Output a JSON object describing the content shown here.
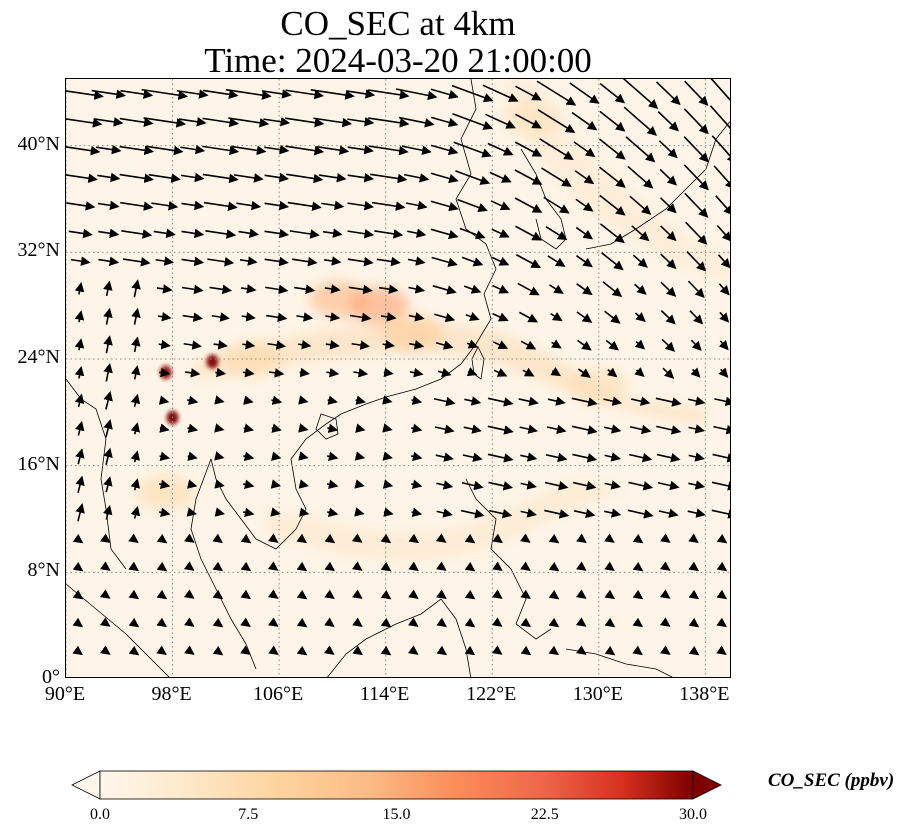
{
  "title": {
    "line1": "CO_SEC at 4km",
    "line2": "Time: 2024-03-20 21:00:00"
  },
  "map": {
    "lon_range": [
      90,
      140
    ],
    "lat_range": [
      0,
      45
    ],
    "lat_ticks": [
      "0°",
      "8°N",
      "16°N",
      "24°N",
      "32°N",
      "40°N"
    ],
    "lon_ticks": [
      "90°E",
      "98°E",
      "106°E",
      "114°E",
      "122°E",
      "130°E",
      "138°E"
    ],
    "gridlines": "dotted grey",
    "field": "CO_SEC",
    "vectors": "wind arrows (black)",
    "hotspots": [
      {
        "lon": 110.5,
        "lat": 28.5,
        "level": 12
      },
      {
        "lon": 113.5,
        "lat": 28.0,
        "level": 14
      },
      {
        "lon": 116.0,
        "lat": 26.0,
        "level": 10
      },
      {
        "lon": 101.0,
        "lat": 23.8,
        "level": 30
      },
      {
        "lon": 97.5,
        "lat": 23.0,
        "level": 28
      },
      {
        "lon": 98.0,
        "lat": 19.6,
        "level": 30
      },
      {
        "lon": 97.5,
        "lat": 14.0,
        "level": 8
      },
      {
        "lon": 104.0,
        "lat": 24.0,
        "level": 8
      },
      {
        "lon": 130.0,
        "lat": 22.0,
        "level": 7
      },
      {
        "lon": 125.0,
        "lat": 42.0,
        "level": 6
      }
    ]
  },
  "colorbar": {
    "label": "CO_SEC (ppbv)",
    "ticks": [
      "0.0",
      "7.5",
      "15.0",
      "22.5",
      "30.0"
    ],
    "min": 0,
    "max": 30,
    "extend": "both",
    "colormap": "OrRd"
  }
}
